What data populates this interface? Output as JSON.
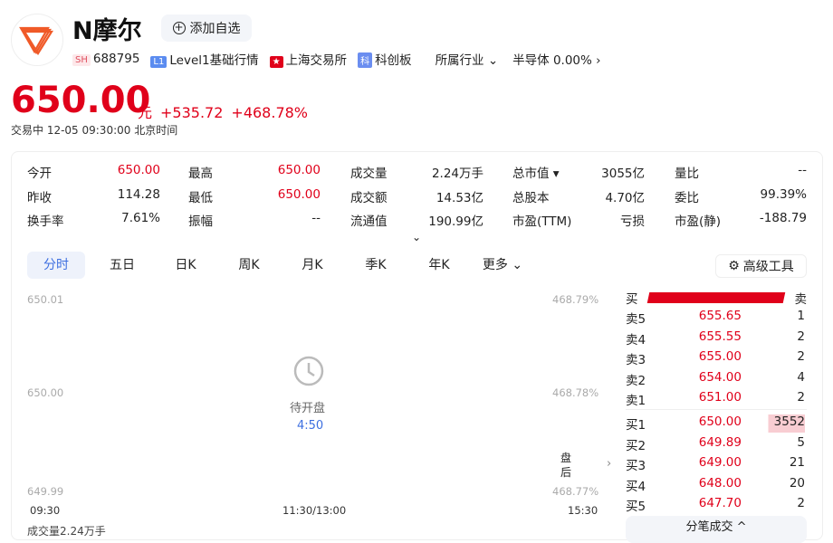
{
  "stock": {
    "name": "N摩尔",
    "add_watch": "添加自选",
    "market": "SH",
    "code": "688795",
    "level": "Level1基础行情",
    "level_tag": "L1",
    "exchange": "上海交易所",
    "board": "科创板",
    "board_tag": "科",
    "industry_label": "所属行业",
    "industry": "半导体 0.00%"
  },
  "quote": {
    "price": "650.00",
    "unit": "元",
    "change": "+535.72",
    "change_pct": "+468.78%",
    "status": "交易中  12-05 09:30:00  北京时间"
  },
  "stats": [
    [
      {
        "k": "今开",
        "v": "650.00",
        "red": true
      },
      {
        "k": "最高",
        "v": "650.00",
        "red": true
      },
      {
        "k": "成交量",
        "v": "2.24万手"
      },
      {
        "k": "总市值 ▾",
        "v": "3055亿"
      },
      {
        "k": "量比",
        "v": "--"
      }
    ],
    [
      {
        "k": "昨收",
        "v": "114.28"
      },
      {
        "k": "最低",
        "v": "650.00",
        "red": true
      },
      {
        "k": "成交额",
        "v": "14.53亿"
      },
      {
        "k": "总股本",
        "v": "4.70亿"
      },
      {
        "k": "委比",
        "v": "99.39%"
      }
    ],
    [
      {
        "k": "换手率",
        "v": "7.61%"
      },
      {
        "k": "振幅",
        "v": "--"
      },
      {
        "k": "流通值",
        "v": "190.99亿"
      },
      {
        "k": "市盈(TTM)",
        "v": "亏损"
      },
      {
        "k": "市盈(静)",
        "v": "-188.79"
      }
    ]
  ],
  "tabs": [
    "分时",
    "五日",
    "日K",
    "周K",
    "月K",
    "季K",
    "年K",
    "更多"
  ],
  "tools": "高级工具",
  "chart": {
    "y_left": [
      "650.01",
      "650.00",
      "649.99"
    ],
    "y_right": [
      "468.79%",
      "468.78%",
      "468.77%"
    ],
    "x": [
      "09:30",
      "11:30/13:00",
      "15:30"
    ],
    "waiting": "待开盘",
    "countdown": "4:50",
    "after_hours": "盘后",
    "volume_cut": "成交量2.24万手"
  },
  "orderbook": {
    "buy_label": "买",
    "sell_label": "卖",
    "buy_ratio": 0.99,
    "asks": [
      {
        "l": "卖5",
        "p": "655.65",
        "v": "1"
      },
      {
        "l": "卖4",
        "p": "655.55",
        "v": "2"
      },
      {
        "l": "卖3",
        "p": "655.00",
        "v": "2"
      },
      {
        "l": "卖2",
        "p": "654.00",
        "v": "4"
      },
      {
        "l": "卖1",
        "p": "651.00",
        "v": "2"
      }
    ],
    "bids": [
      {
        "l": "买1",
        "p": "650.00",
        "v": "3552"
      },
      {
        "l": "买2",
        "p": "649.89",
        "v": "5"
      },
      {
        "l": "买3",
        "p": "649.00",
        "v": "21"
      },
      {
        "l": "买4",
        "p": "648.00",
        "v": "20"
      },
      {
        "l": "买5",
        "p": "647.70",
        "v": "2"
      }
    ],
    "ticks_btn": "分笔成交 ^"
  },
  "colors": {
    "up": "#e0001a",
    "accent": "#3d6fe0"
  }
}
